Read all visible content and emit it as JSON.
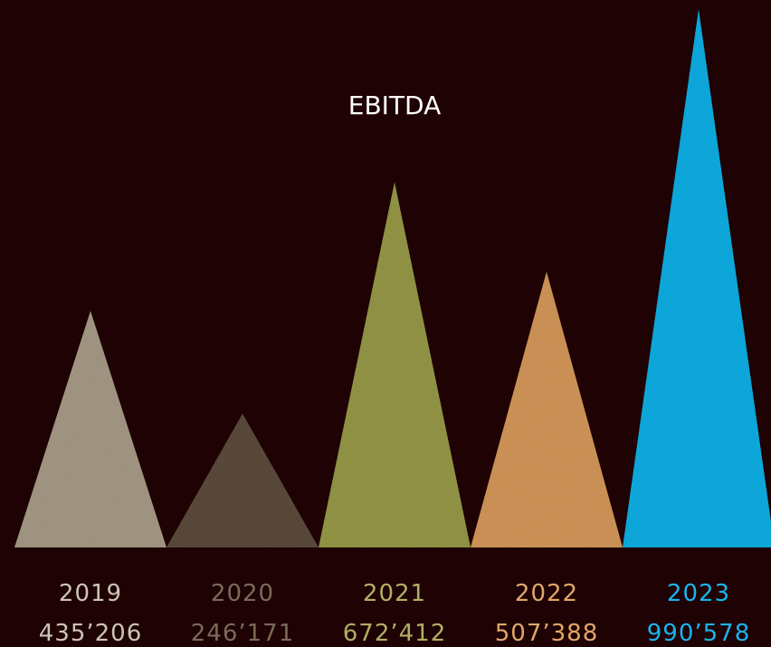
{
  "chart_data": {
    "type": "bar",
    "title": "EBITDA",
    "categories": [
      "2019",
      "2020",
      "2021",
      "2022",
      "2023"
    ],
    "values": [
      435206,
      246171,
      672412,
      507388,
      990578
    ],
    "value_labels": [
      "435’206",
      "246’171",
      "672’412",
      "507’388",
      "990’578"
    ],
    "colors": [
      "#a89c88",
      "#5e4e3c",
      "#989a48",
      "#d6995c",
      "#14b0e6"
    ],
    "label_colors": [
      "#ccc4b6",
      "#7a6a58",
      "#b2ae64",
      "#e0a66a",
      "#1ab4ec"
    ],
    "ylim": [
      0,
      990578
    ],
    "grid": false,
    "legend": "none"
  }
}
